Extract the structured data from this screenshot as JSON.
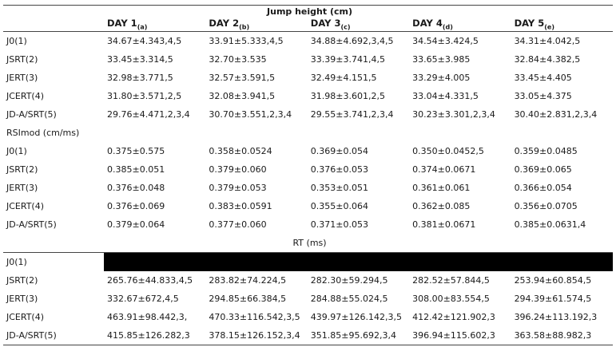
{
  "title": "Jump height (cm)",
  "days": [
    {
      "label": "DAY 1",
      "sub": "(a)"
    },
    {
      "label": "DAY 2",
      "sub": "(b)"
    },
    {
      "label": "DAY 3",
      "sub": "(c)"
    },
    {
      "label": "DAY 4",
      "sub": "(d)"
    },
    {
      "label": "DAY 5",
      "sub": "(e)"
    }
  ],
  "jump_rows": [
    {
      "label": "J0(1)",
      "values": [
        "34.67±4.343,4,5",
        "33.91±5.333,4,5",
        "34.88±4.692,3,4,5",
        "34.54±3.424,5",
        "34.31±4.042,5"
      ]
    },
    {
      "label": "JSRT(2)",
      "values": [
        "33.45±3.314,5",
        "32.70±3.535",
        "33.39±3.741,4,5",
        "33.65±3.985",
        "32.84±4.382,5"
      ]
    },
    {
      "label": "JERT(3)",
      "values": [
        "32.98±3.771,5",
        "32.57±3.591,5",
        "32.49±4.151,5",
        "33.29±4.005",
        "33.45±4.405"
      ]
    },
    {
      "label": "JCERT(4)",
      "values": [
        "31.80±3.571,2,5",
        "32.08±3.941,5",
        "31.98±3.601,2,5",
        "33.04±4.331,5",
        "33.05±4.375"
      ]
    },
    {
      "label": "JD-A/SRT(5)",
      "values": [
        "29.76±4.471,2,3,4",
        "30.70±3.551,2,3,4",
        "29.55±3.741,2,3,4",
        "30.23±3.301,2,3,4",
        "30.40±2.831,2,3,4"
      ]
    }
  ],
  "rsi_heading": "RSImod (cm/ms)",
  "rsi_rows": [
    {
      "label": "J0(1)",
      "values": [
        "0.375±0.575",
        "0.358±0.0524",
        "0.369±0.054",
        "0.350±0.0452,5",
        "0.359±0.0485"
      ]
    },
    {
      "label": "JSRT(2)",
      "values": [
        "0.385±0.051",
        "0.379±0.060",
        "0.376±0.053",
        "0.374±0.0671",
        "0.369±0.065"
      ]
    },
    {
      "label": "JERT(3)",
      "values": [
        "0.376±0.048",
        "0.379±0.053",
        "0.353±0.051",
        "0.361±0.061",
        "0.366±0.054"
      ]
    },
    {
      "label": "JCERT(4)",
      "values": [
        "0.376±0.069",
        "0.383±0.0591",
        "0.355±0.064",
        "0.362±0.085",
        "0.356±0.0705"
      ]
    },
    {
      "label": "JD-A/SRT(5)",
      "values": [
        "0.379±0.064",
        "0.377±0.060",
        "0.371±0.053",
        "0.381±0.0671",
        "0.385±0.0631,4"
      ]
    }
  ],
  "rt_heading": "RT (ms)",
  "rt_redacted_row_label": "J0(1)",
  "rt_rows": [
    {
      "label": "JSRT(2)",
      "values": [
        "265.76±44.833,4,5",
        "283.82±74.224,5",
        "282.30±59.294,5",
        "282.52±57.844,5",
        "253.94±60.854,5"
      ]
    },
    {
      "label": "JERT(3)",
      "values": [
        "332.67±672,4,5",
        "294.85±66.384,5",
        "284.88±55.024,5",
        "308.00±83.554,5",
        "294.39±61.574,5"
      ]
    },
    {
      "label": "JCERT(4)",
      "values": [
        "463.91±98.442,3,",
        "470.33±116.542,3,5",
        "439.97±126.142,3,5",
        "412.42±121.902,3",
        "396.24±113.192,3"
      ]
    },
    {
      "label": "JD-A/SRT(5)",
      "values": [
        "415.85±126.282,3",
        "378.15±126.152,3,4",
        "351.85±95.692,3,4",
        "396.94±115.602,3",
        "363.58±88.982,3"
      ]
    }
  ]
}
